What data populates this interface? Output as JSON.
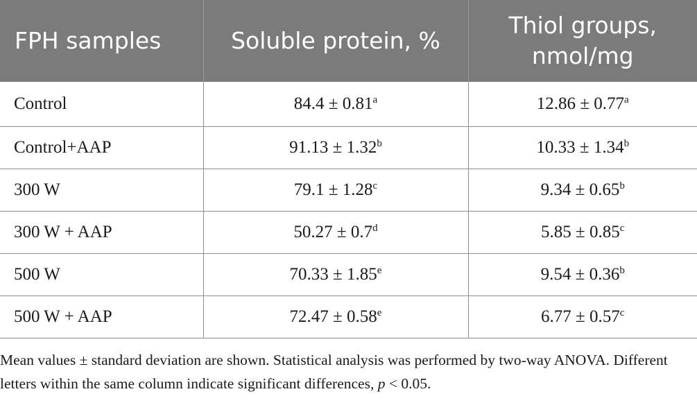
{
  "table": {
    "headers": [
      "FPH samples",
      "Soluble protein, %",
      "Thiol groups, nmol/mg"
    ],
    "rows": [
      {
        "sample": "Control",
        "soluble_protein": "84.4 ± 0.81",
        "soluble_protein_sup": "a",
        "thiol_groups": "12.86 ± 0.77",
        "thiol_groups_sup": "a"
      },
      {
        "sample": "Control+AAP",
        "soluble_protein": "91.13 ± 1.32",
        "soluble_protein_sup": "b",
        "thiol_groups": "10.33 ± 1.34",
        "thiol_groups_sup": "b"
      },
      {
        "sample": "300 W",
        "soluble_protein": "79.1 ± 1.28",
        "soluble_protein_sup": "c",
        "thiol_groups": "9.34 ± 0.65",
        "thiol_groups_sup": "b"
      },
      {
        "sample": "300 W + AAP",
        "soluble_protein": "50.27 ± 0.7",
        "soluble_protein_sup": "d",
        "thiol_groups": "5.85 ± 0.85",
        "thiol_groups_sup": "c"
      },
      {
        "sample": "500 W",
        "soluble_protein": "70.33 ± 1.85",
        "soluble_protein_sup": "e",
        "thiol_groups": "9.54 ± 0.36",
        "thiol_groups_sup": "b"
      },
      {
        "sample": "500 W + AAP",
        "soluble_protein": "72.47 ± 0.58",
        "soluble_protein_sup": "e",
        "thiol_groups": "6.77 ± 0.57",
        "thiol_groups_sup": "c"
      }
    ]
  },
  "footnote": {
    "text_before_p": "Mean values ± standard deviation are shown. Statistical analysis was performed by two-way ANOVA. Different letters within the same column indicate significant differences, ",
    "p_symbol": "p",
    "text_after_p": " < 0.05."
  },
  "colors": {
    "header_background": "#7b7b7b",
    "header_text": "#ffffff",
    "border": "#8c8c8c"
  }
}
